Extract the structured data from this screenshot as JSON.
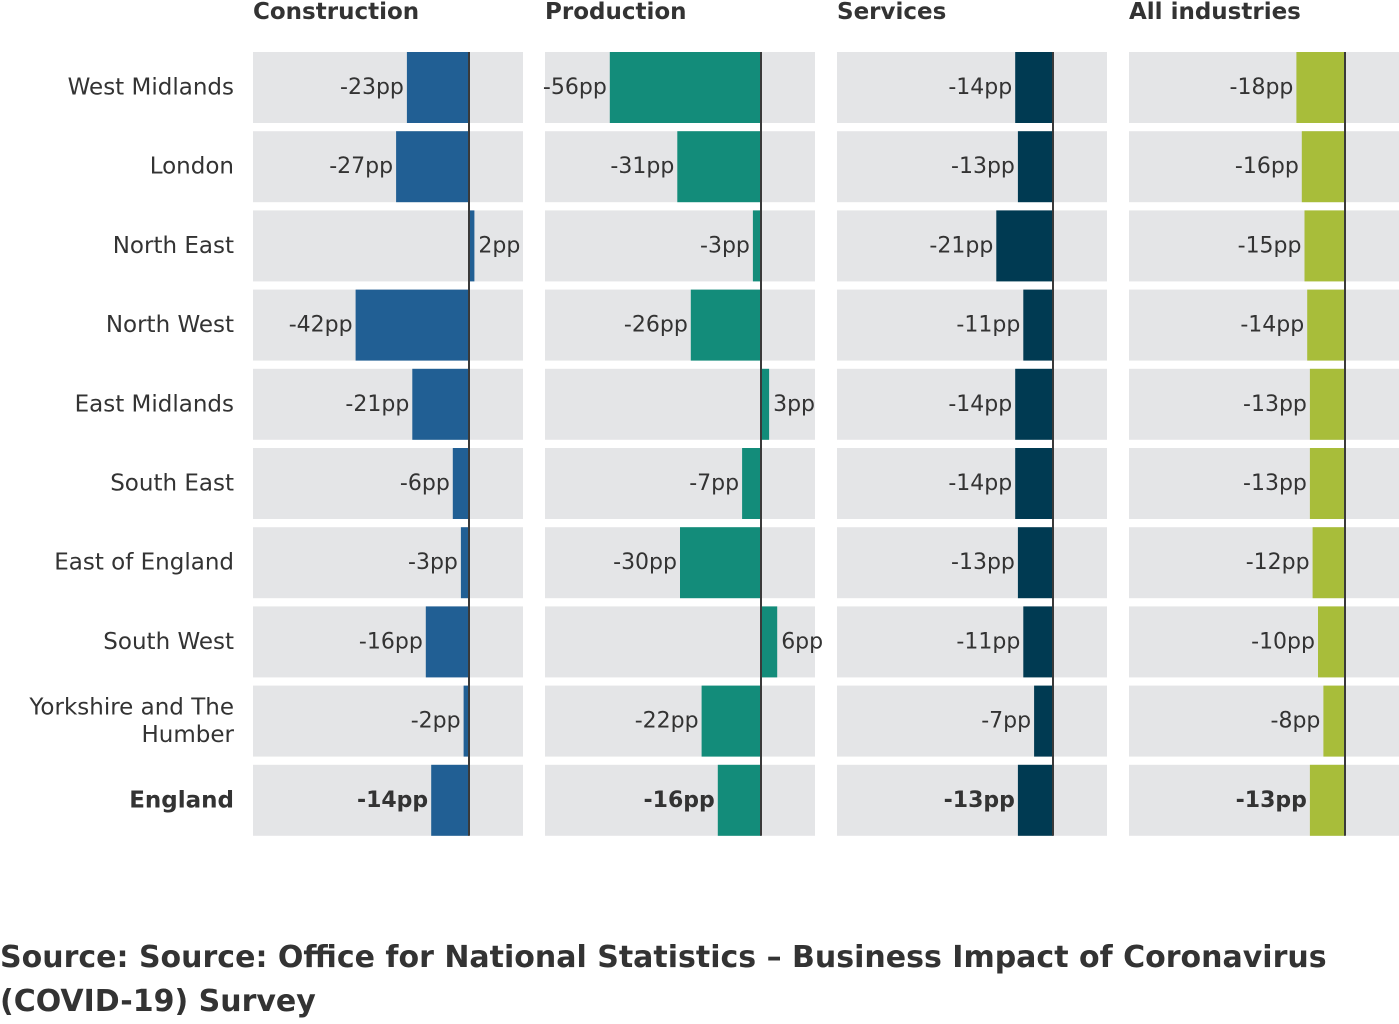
{
  "chart_data": {
    "type": "bar",
    "orientation": "horizontal",
    "layout": "small-multiples",
    "unit_suffix": "pp",
    "categories": [
      "West Midlands",
      "London",
      "North East",
      "North West",
      "East Midlands",
      "South East",
      "East of England",
      "South West",
      "Yorkshire and The Humber",
      "England"
    ],
    "total_category": "England",
    "series": [
      {
        "name": "Construction",
        "color": "#215f94",
        "values": [
          -23,
          -27,
          2,
          -42,
          -21,
          -6,
          -3,
          -16,
          -2,
          -14
        ]
      },
      {
        "name": "Production",
        "color": "#138c7a",
        "values": [
          -56,
          -31,
          -3,
          -26,
          3,
          -7,
          -30,
          6,
          -22,
          -16
        ]
      },
      {
        "name": "Services",
        "color": "#003a52",
        "values": [
          -14,
          -13,
          -21,
          -11,
          -14,
          -14,
          -13,
          -11,
          -7,
          -13
        ]
      },
      {
        "name": "All industries",
        "color": "#a8bd3a",
        "values": [
          -18,
          -16,
          -15,
          -14,
          -13,
          -13,
          -12,
          -10,
          -8,
          -13
        ]
      }
    ],
    "panel_ranges": [
      [
        -80,
        20
      ],
      [
        -80,
        20
      ],
      [
        -80,
        20
      ],
      [
        -80,
        20
      ]
    ],
    "track_color": "#e4e5e7"
  },
  "source": "Source: Source: Office for National Statistics – Business Impact of Coronavirus (COVID-19) Survey"
}
